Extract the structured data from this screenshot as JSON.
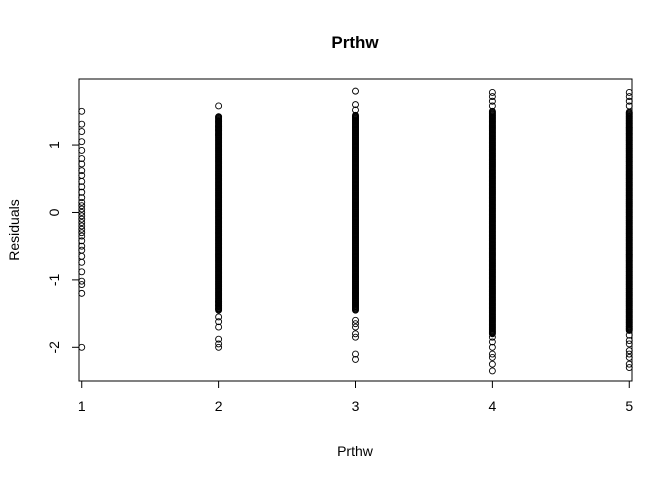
{
  "chart_data": {
    "type": "scatter",
    "title": "Prthw",
    "xlabel": "Prthw",
    "ylabel": "Residuals",
    "xlim": [
      0.98,
      5.02
    ],
    "ylim": [
      -2.5,
      1.98
    ],
    "x_ticks": [
      1,
      2,
      3,
      4,
      5
    ],
    "y_ticks": [
      -2,
      -1,
      0,
      1
    ],
    "grid": false,
    "point_style": "open-circle",
    "series": [
      {
        "x": 1,
        "values": [
          1.5,
          1.31,
          1.2,
          1.05,
          0.92,
          0.8,
          0.72,
          0.62,
          0.55,
          0.46,
          0.38,
          0.3,
          0.22,
          0.15,
          0.1,
          0.05,
          0.0,
          -0.05,
          -0.1,
          -0.15,
          -0.2,
          -0.25,
          -0.3,
          -0.35,
          -0.42,
          -0.5,
          -0.56,
          -0.65,
          -0.74,
          -0.88,
          -1.02,
          -1.07,
          -1.2,
          -2.0
        ]
      },
      {
        "x": 2,
        "range": [
          -1.45,
          1.42
        ],
        "values": [
          1.58,
          1.42,
          1.35,
          1.28,
          1.22,
          1.15,
          -1.32,
          -1.38,
          -1.43,
          -1.55,
          -1.62,
          -1.7,
          -1.88,
          -1.95,
          -2.0
        ]
      },
      {
        "x": 3,
        "range": [
          -1.45,
          1.45
        ],
        "values": [
          1.8,
          1.6,
          1.52,
          -0.75,
          -0.95,
          -1.2,
          -1.6,
          -1.65,
          -1.7,
          -1.8,
          -1.85,
          -2.1,
          -2.18
        ]
      },
      {
        "x": 4,
        "range": [
          -1.8,
          1.5
        ],
        "values": [
          1.78,
          1.72,
          1.65,
          1.58,
          -1.85,
          -1.92,
          -2.0,
          -2.1,
          -2.15,
          -2.25,
          -2.35
        ]
      },
      {
        "x": 5,
        "range": [
          -1.75,
          1.5
        ],
        "values": [
          1.78,
          1.72,
          1.65,
          1.58,
          -1.82,
          -1.9,
          -1.95,
          -2.05,
          -2.1,
          -2.15,
          -2.25,
          -2.3
        ]
      }
    ]
  }
}
